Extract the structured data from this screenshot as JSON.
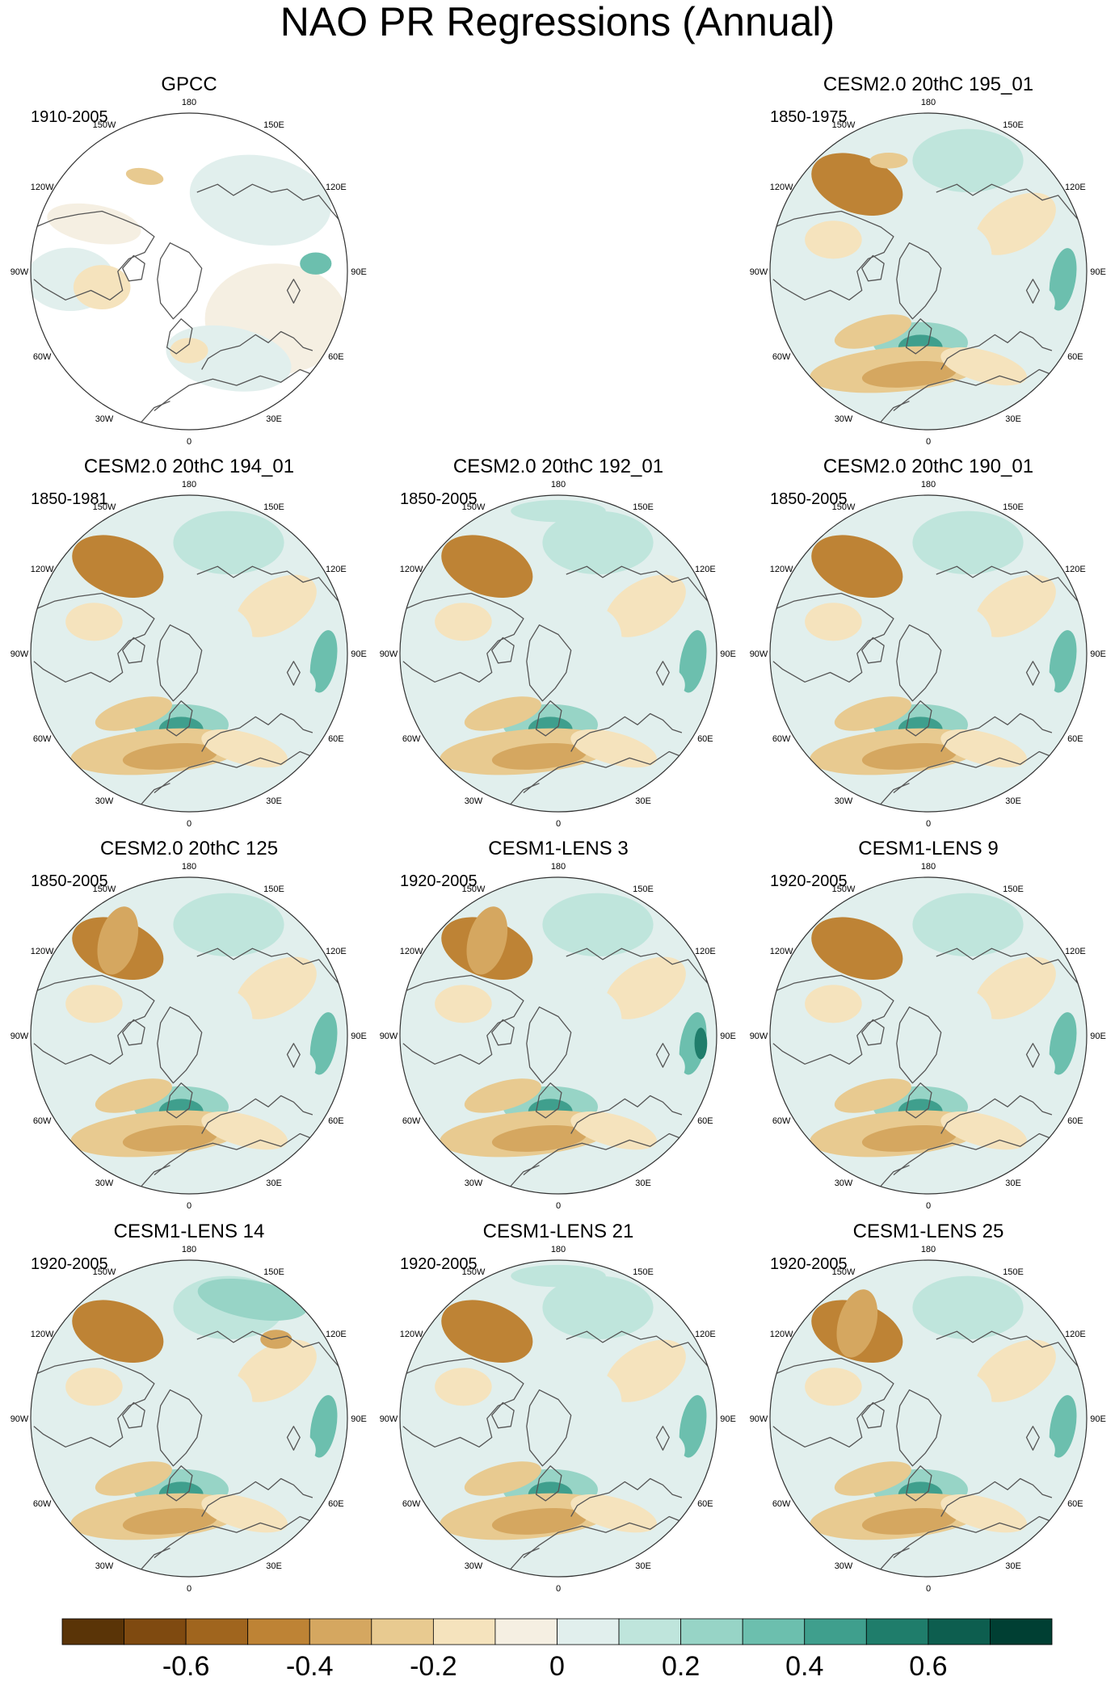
{
  "figure": {
    "title": "NAO PR Regressions (Annual)"
  },
  "lon_labels": [
    "180",
    "150E",
    "120E",
    "90E",
    "60E",
    "30E",
    "0",
    "30W",
    "60W",
    "90W",
    "120W",
    "150W"
  ],
  "panels": [
    {
      "title": "GPCC",
      "period": "1910-2005",
      "observed": true
    },
    null,
    {
      "title": "CESM2.0 20thC 195_01",
      "period": "1850-1975"
    },
    {
      "title": "CESM2.0 20thC 194_01",
      "period": "1850-1981"
    },
    {
      "title": "CESM2.0 20thC 192_01",
      "period": "1850-2005"
    },
    {
      "title": "CESM2.0 20thC 190_01",
      "period": "1850-2005"
    },
    {
      "title": "CESM2.0 20thC 125",
      "period": "1850-2005"
    },
    {
      "title": "CESM1-LENS 3",
      "period": "1920-2005"
    },
    {
      "title": "CESM1-LENS 9",
      "period": "1920-2005"
    },
    {
      "title": "CESM1-LENS 14",
      "period": "1920-2005"
    },
    {
      "title": "CESM1-LENS 21",
      "period": "1920-2005"
    },
    {
      "title": "CESM1-LENS 25",
      "period": "1920-2005"
    }
  ],
  "colorbar": {
    "colors": [
      "#5a3407",
      "#7f4a10",
      "#a0651e",
      "#be8335",
      "#d5a760",
      "#e8ca90",
      "#f5e3bd",
      "#f5efe2",
      "#e1efed",
      "#bfe5dc",
      "#97d4c6",
      "#6cbfae",
      "#3f9f8d",
      "#1f7d6b",
      "#0d5e4f",
      "#003f33"
    ],
    "tick_labels": [
      "-0.6",
      "-0.4",
      "-0.2",
      "0",
      "0.2",
      "0.4",
      "0.6"
    ]
  }
}
